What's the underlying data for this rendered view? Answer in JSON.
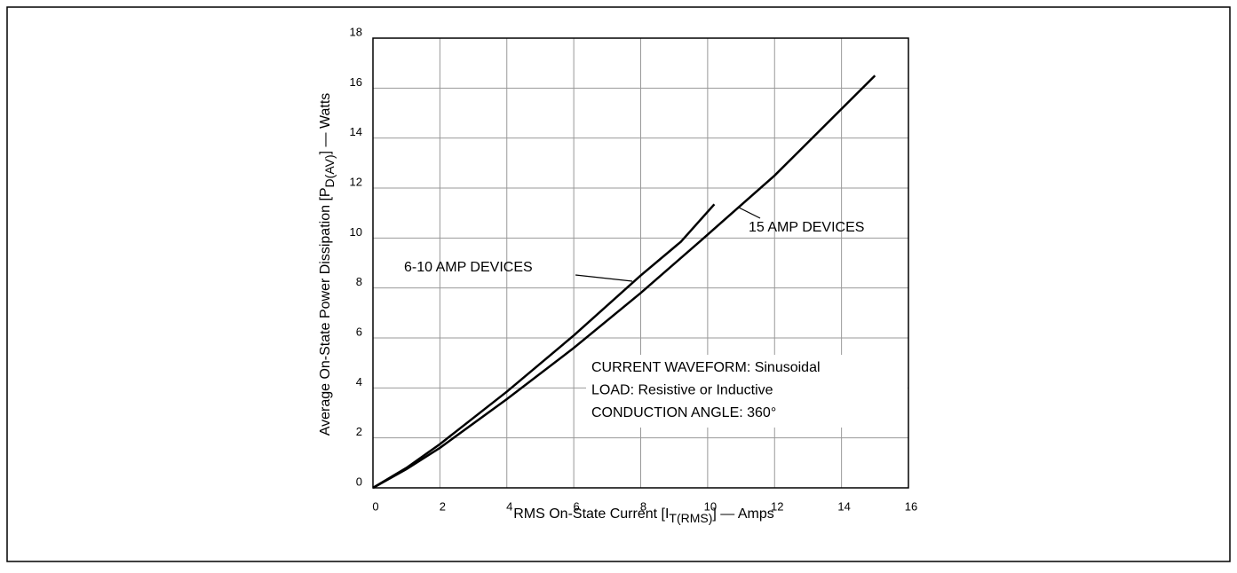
{
  "chart_data": {
    "type": "line",
    "xlabel": [
      "RMS On-State Current [I",
      "T(RMS)",
      "] — Amps"
    ],
    "ylabel": [
      "Average On-State Power Dissipation [P",
      "D(AV)",
      "] — Watts"
    ],
    "xlim": [
      0,
      16
    ],
    "xticks": [
      0,
      2,
      4,
      6,
      8,
      10,
      12,
      14,
      16
    ],
    "ylim": [
      0,
      18
    ],
    "yticks": [
      0,
      2,
      4,
      6,
      8,
      10,
      12,
      14,
      16,
      18
    ],
    "grid": true,
    "series": [
      {
        "name": "6-10 AMP DEVICES",
        "color": "#000000",
        "x": [
          0,
          1,
          2,
          4,
          6,
          8,
          9.2,
          10.2
        ],
        "values": [
          0,
          0.8,
          1.75,
          3.85,
          6.1,
          8.5,
          9.85,
          11.35
        ]
      },
      {
        "name": "15 AMP DEVICES",
        "color": "#000000",
        "x": [
          0,
          1,
          2,
          4,
          6,
          8,
          9.8,
          12,
          15
        ],
        "values": [
          0,
          0.75,
          1.6,
          3.55,
          5.6,
          7.8,
          9.9,
          12.5,
          16.5
        ]
      }
    ],
    "annotations": [
      "CURRENT WAVEFORM: Sinusoidal",
      "LOAD:  Resistive or Inductive",
      "CONDUCTION ANGLE: 360°"
    ]
  }
}
